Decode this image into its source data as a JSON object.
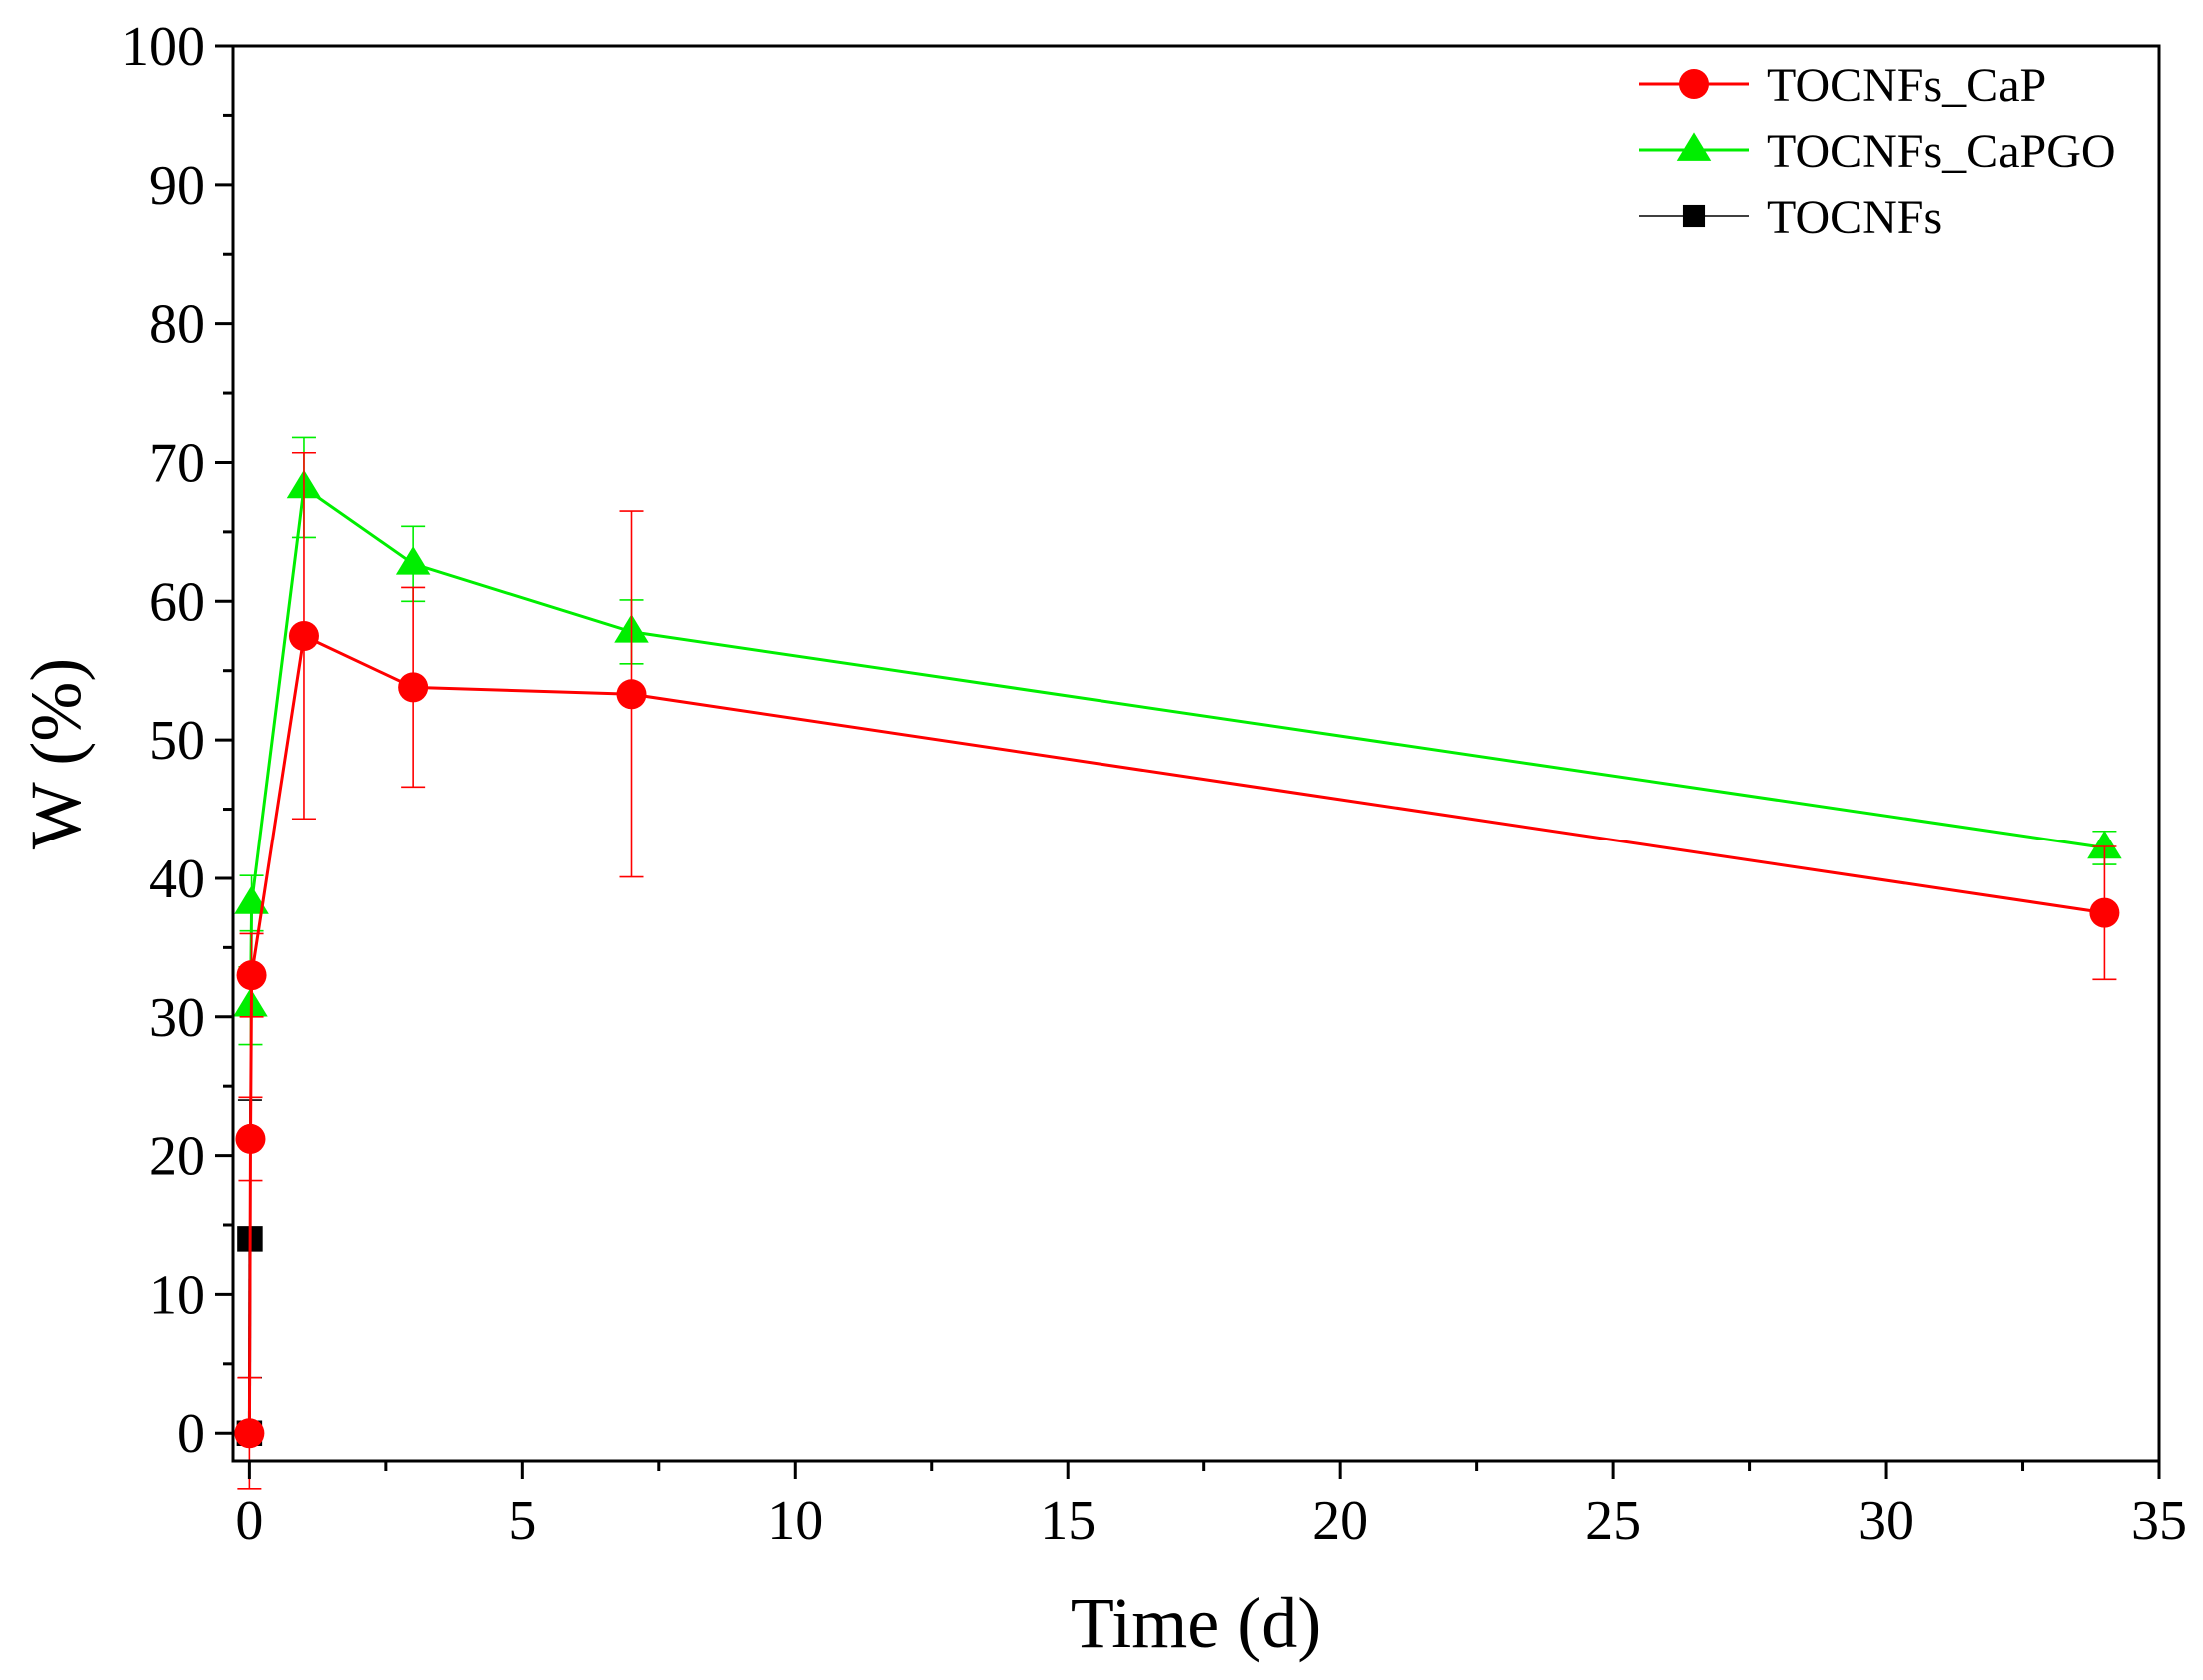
{
  "chart_data": {
    "type": "line",
    "title": "",
    "xlabel": "Time (d)",
    "ylabel": "W (%)",
    "xlim": [
      -0.3,
      35
    ],
    "ylim": [
      -2,
      100
    ],
    "xticks": [
      0,
      5,
      10,
      15,
      20,
      25,
      30,
      35
    ],
    "yticks": [
      0,
      10,
      20,
      30,
      40,
      50,
      60,
      70,
      80,
      90,
      100
    ],
    "legend_position": "top-right",
    "series": [
      {
        "name": "TOCNFs_CaP",
        "color": "#ff0000",
        "marker": "circle",
        "points": [
          {
            "x": 0,
            "y": 0,
            "err": 4
          },
          {
            "x": 0.02,
            "y": 21.2,
            "err": 3
          },
          {
            "x": 0.04,
            "y": 33,
            "err": 3
          },
          {
            "x": 1,
            "y": 57.5,
            "err": 13.2
          },
          {
            "x": 3,
            "y": 53.8,
            "err": 7.2
          },
          {
            "x": 7,
            "y": 53.3,
            "err": 13.2
          },
          {
            "x": 34,
            "y": 37.5,
            "err": 4.8
          }
        ]
      },
      {
        "name": "TOCNFs_CaPGO",
        "color": "#00ee00",
        "marker": "triangle",
        "points": [
          {
            "x": 0.02,
            "y": 30.8,
            "err": 2.8
          },
          {
            "x": 0.04,
            "y": 38.2,
            "err": 2
          },
          {
            "x": 1,
            "y": 68.2,
            "err": 3.6
          },
          {
            "x": 3,
            "y": 62.7,
            "err": 2.7
          },
          {
            "x": 7,
            "y": 57.8,
            "err": 2.3
          },
          {
            "x": 34,
            "y": 42.2,
            "err": 1.2
          }
        ]
      },
      {
        "name": "TOCNFs",
        "color": "#000000",
        "marker": "square",
        "points": [
          {
            "x": 0,
            "y": 0,
            "err": 0
          },
          {
            "x": 0.01,
            "y": 14,
            "err": 10
          }
        ]
      }
    ]
  }
}
